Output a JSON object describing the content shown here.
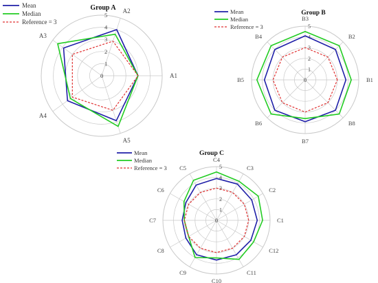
{
  "colors": {
    "mean": "#1f1fa8",
    "median": "#22cc22",
    "reference": "#e03030",
    "grid": "#c8c8c8",
    "label": "#444444"
  },
  "legend": {
    "mean": "Mean",
    "median": "Median",
    "reference": "Reference = 3"
  },
  "chart_data": [
    {
      "type": "radar",
      "title": "Group A",
      "categories": [
        "A1",
        "A2",
        "A3",
        "A4",
        "A5"
      ],
      "rlim": [
        0,
        5
      ],
      "ticks": [
        "0",
        "1",
        "2",
        "3",
        "4",
        "5"
      ],
      "grid": true,
      "series": [
        {
          "name": "Mean",
          "values": [
            3.0,
            4.0,
            3.9,
            3.5,
            3.9
          ]
        },
        {
          "name": "Median",
          "values": [
            3.0,
            3.6,
            4.5,
            3.2,
            4.4
          ]
        },
        {
          "name": "Reference = 3",
          "values": [
            3,
            3,
            3,
            3,
            3
          ]
        }
      ]
    },
    {
      "type": "radar",
      "title": "Group B",
      "categories": [
        "B1",
        "B2",
        "B3",
        "B4",
        "B5",
        "B6",
        "B7",
        "B8"
      ],
      "rlim": [
        0,
        5
      ],
      "ticks": [
        "0",
        "1",
        "2",
        "3",
        "4",
        "5"
      ],
      "grid": true,
      "series": [
        {
          "name": "Mean",
          "values": [
            3.8,
            4.0,
            4.1,
            4.0,
            3.8,
            4.0,
            3.9,
            4.0
          ]
        },
        {
          "name": "Median",
          "values": [
            4.3,
            4.5,
            4.5,
            4.5,
            4.5,
            4.5,
            3.6,
            4.5
          ]
        },
        {
          "name": "Reference = 3",
          "values": [
            3,
            3,
            3,
            3,
            3,
            3,
            3,
            3
          ]
        }
      ]
    },
    {
      "type": "radar",
      "title": "Group C",
      "categories": [
        "C1",
        "C2",
        "C3",
        "C4",
        "C5",
        "C6",
        "C7",
        "C8",
        "C9",
        "C10",
        "C11",
        "C12"
      ],
      "rlim": [
        0,
        5
      ],
      "ticks": [
        "0",
        "1",
        "2",
        "3",
        "4",
        "5"
      ],
      "grid": true,
      "series": [
        {
          "name": "Mean",
          "values": [
            3.8,
            3.8,
            3.9,
            3.9,
            3.8,
            3.3,
            3.2,
            3.3,
            3.7,
            3.7,
            3.7,
            3.7
          ]
        },
        {
          "name": "Median",
          "values": [
            4.3,
            4.5,
            4.2,
            4.5,
            4.3,
            3.5,
            3.0,
            3.0,
            4.0,
            3.5,
            4.2,
            4.0
          ]
        },
        {
          "name": "Reference = 3",
          "values": [
            3,
            3,
            3,
            3,
            3,
            3,
            3,
            3,
            3,
            3,
            3,
            3
          ]
        }
      ]
    }
  ]
}
